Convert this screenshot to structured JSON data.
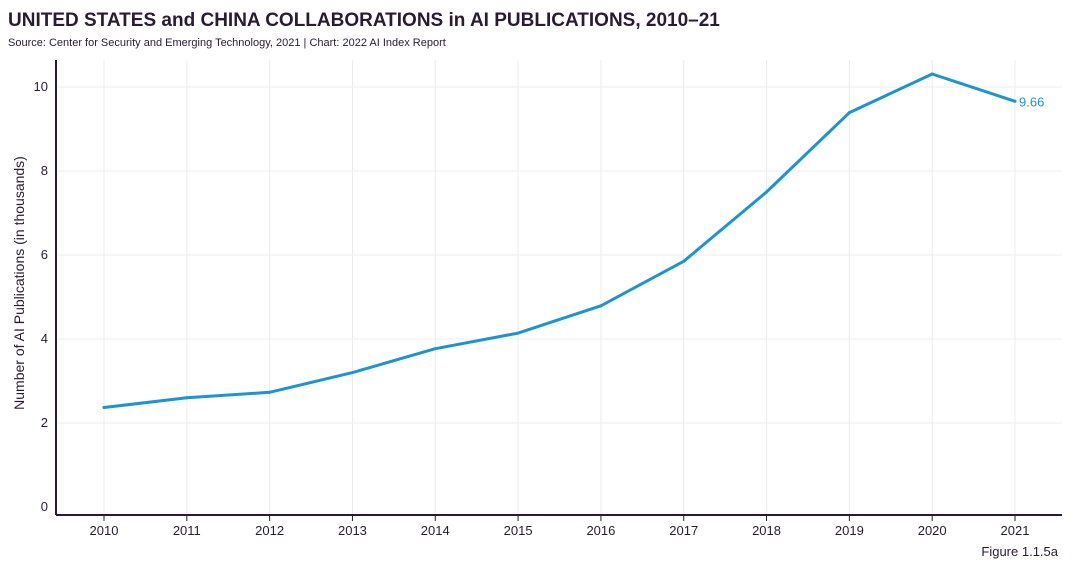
{
  "header": {
    "title": "UNITED STATES and CHINA COLLABORATIONS in AI PUBLICATIONS, 2010–21",
    "subtitle": "Source: Center for Security and Emerging Technology, 2021 | Chart: 2022 AI Index Report"
  },
  "footer": {
    "figure_label": "Figure 1.1.5a"
  },
  "colors": {
    "line": "#1f93cf",
    "axis": "#2a1a33",
    "grid": "#ececec",
    "text": "#2a1a33"
  },
  "chart_data": {
    "type": "line",
    "title": "UNITED STATES and CHINA COLLABORATIONS in AI PUBLICATIONS, 2010–21",
    "xlabel": "",
    "ylabel": "Number of AI Publications (in thousands)",
    "ylim": [
      0,
      11
    ],
    "yticks": [
      0,
      2,
      4,
      6,
      8,
      10
    ],
    "grid": true,
    "categories": [
      "2010",
      "2011",
      "2012",
      "2013",
      "2014",
      "2015",
      "2016",
      "2017",
      "2018",
      "2019",
      "2020",
      "2021"
    ],
    "series": [
      {
        "name": "United States and China collaborations",
        "values": [
          2.37,
          2.6,
          2.73,
          3.2,
          3.77,
          4.14,
          4.79,
          5.85,
          7.5,
          9.39,
          10.31,
          9.66
        ]
      }
    ],
    "end_label": "9.66"
  }
}
